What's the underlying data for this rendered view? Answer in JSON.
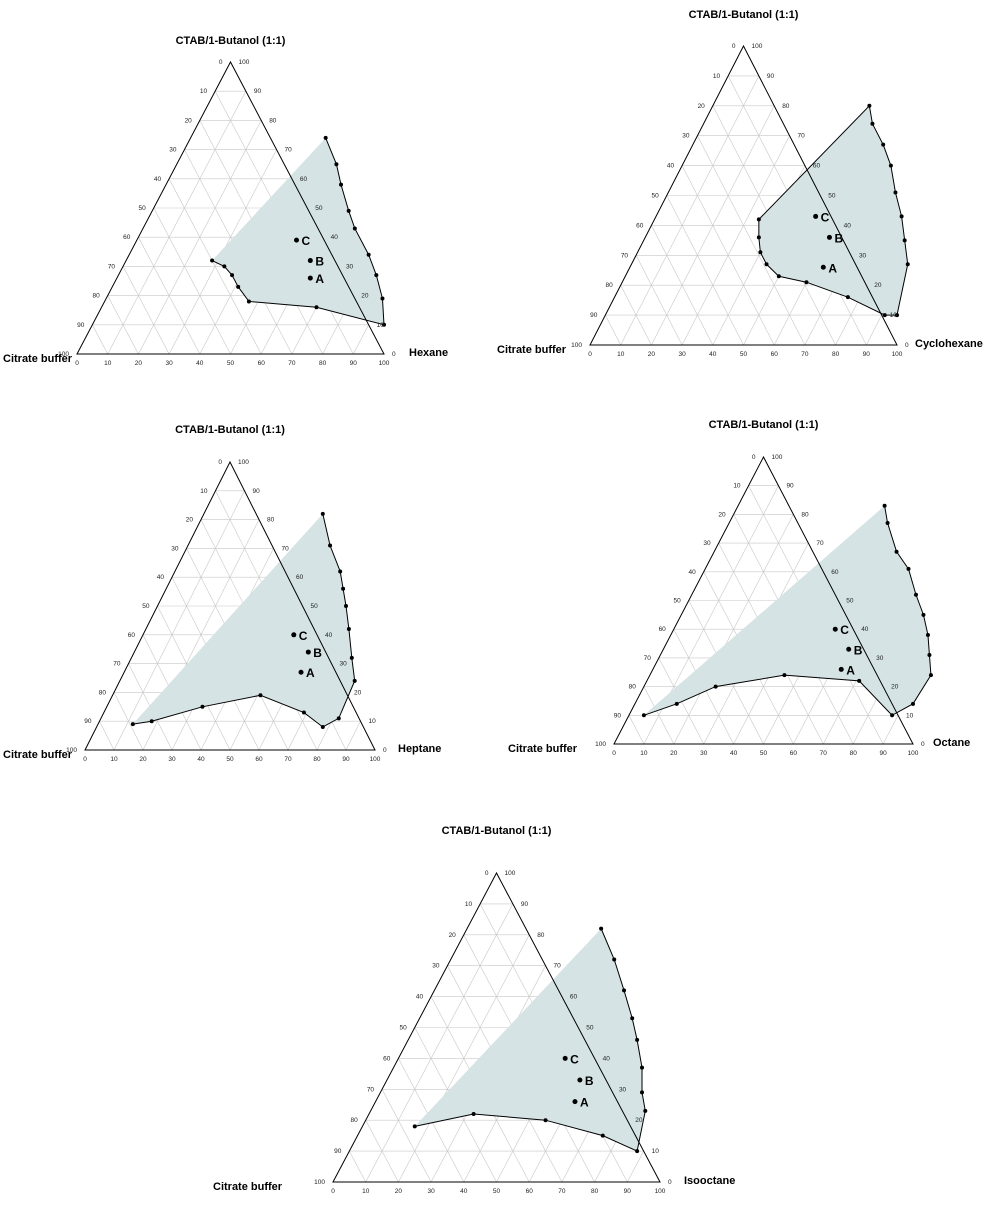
{
  "chart_data": [
    {
      "type": "scatter",
      "title": "CTAB/1-Butanol (1:1)",
      "vertices": {
        "top": "CTAB/1-Butanol (1:1)",
        "left": "Citrate buffer",
        "right": "Hexane"
      },
      "axis_ticks": [
        0,
        10,
        20,
        30,
        40,
        50,
        60,
        70,
        80,
        90,
        100
      ],
      "boundary": [
        {
          "oil": 44,
          "surf": 74
        },
        {
          "oil": 52,
          "surf": 65
        },
        {
          "oil": 57,
          "surf": 58
        },
        {
          "oil": 64,
          "surf": 49
        },
        {
          "oil": 69,
          "surf": 43
        },
        {
          "oil": 78,
          "surf": 34
        },
        {
          "oil": 84,
          "surf": 27
        },
        {
          "oil": 90,
          "surf": 19
        },
        {
          "oil": 95,
          "surf": 10
        },
        {
          "oil": 70,
          "surf": 16
        },
        {
          "oil": 47,
          "surf": 18
        },
        {
          "oil": 41,
          "surf": 23
        },
        {
          "oil": 37,
          "surf": 27
        },
        {
          "oil": 33,
          "surf": 30
        },
        {
          "oil": 28,
          "surf": 32
        }
      ],
      "boundary_closed": false,
      "points": [
        {
          "label": "A",
          "oil": 63,
          "surf": 26
        },
        {
          "label": "B",
          "oil": 60,
          "surf": 32
        },
        {
          "label": "C",
          "oil": 52,
          "surf": 39
        }
      ]
    },
    {
      "type": "scatter",
      "title": "CTAB/1-Butanol (1:1)",
      "vertices": {
        "top": "CTAB/1-Butanol (1:1)",
        "left": "Citrate buffer",
        "right": "Cyclohexane"
      },
      "axis_ticks": [
        0,
        10,
        20,
        30,
        40,
        50,
        60,
        70,
        80,
        90,
        100
      ],
      "boundary": [
        {
          "oil": 51,
          "surf": 80
        },
        {
          "oil": 55,
          "surf": 74
        },
        {
          "oil": 62,
          "surf": 67
        },
        {
          "oil": 68,
          "surf": 60
        },
        {
          "oil": 74,
          "surf": 51
        },
        {
          "oil": 80,
          "surf": 43
        },
        {
          "oil": 85,
          "surf": 35
        },
        {
          "oil": 90,
          "surf": 27
        },
        {
          "oil": 95,
          "surf": 10
        },
        {
          "oil": 91,
          "surf": 10
        },
        {
          "oil": 76,
          "surf": 16
        },
        {
          "oil": 60,
          "surf": 21
        },
        {
          "oil": 50,
          "surf": 23
        },
        {
          "oil": 44,
          "surf": 27
        },
        {
          "oil": 40,
          "surf": 31
        },
        {
          "oil": 37,
          "surf": 36
        },
        {
          "oil": 34,
          "surf": 42
        }
      ],
      "boundary_closed": true,
      "points": [
        {
          "label": "A",
          "oil": 63,
          "surf": 26
        },
        {
          "label": "B",
          "oil": 60,
          "surf": 36
        },
        {
          "label": "C",
          "oil": 52,
          "surf": 43
        }
      ]
    },
    {
      "type": "scatter",
      "title": "CTAB/1-Butanol (1:1)",
      "vertices": {
        "top": "CTAB/1-Butanol (1:1)",
        "left": "Citrate buffer",
        "right": "Heptane"
      },
      "axis_ticks": [
        0,
        10,
        20,
        30,
        40,
        50,
        60,
        70,
        80,
        90,
        100
      ],
      "boundary": [
        {
          "oil": 41,
          "surf": 82
        },
        {
          "oil": 49,
          "surf": 71
        },
        {
          "oil": 57,
          "surf": 62
        },
        {
          "oil": 61,
          "surf": 56
        },
        {
          "oil": 65,
          "surf": 50
        },
        {
          "oil": 70,
          "surf": 42
        },
        {
          "oil": 76,
          "surf": 32
        },
        {
          "oil": 81,
          "surf": 24
        },
        {
          "oil": 82,
          "surf": 11
        },
        {
          "oil": 78,
          "surf": 8
        },
        {
          "oil": 69,
          "surf": 13
        },
        {
          "oil": 51,
          "surf": 19
        },
        {
          "oil": 33,
          "surf": 15
        },
        {
          "oil": 18,
          "surf": 10
        },
        {
          "oil": 12,
          "surf": 9
        }
      ],
      "boundary_closed": false,
      "points": [
        {
          "label": "A",
          "oil": 61,
          "surf": 27
        },
        {
          "label": "B",
          "oil": 60,
          "surf": 34
        },
        {
          "label": "C",
          "oil": 52,
          "surf": 40
        }
      ]
    },
    {
      "type": "scatter",
      "title": "CTAB/1-Butanol (1:1)",
      "vertices": {
        "top": "CTAB/1-Butanol (1:1)",
        "left": "Citrate buffer",
        "right": "Octane"
      },
      "axis_ticks": [
        0,
        10,
        20,
        30,
        40,
        50,
        60,
        70,
        80,
        90,
        100
      ],
      "boundary": [
        {
          "oil": 49,
          "surf": 83
        },
        {
          "oil": 53,
          "surf": 77
        },
        {
          "oil": 61,
          "surf": 67
        },
        {
          "oil": 68,
          "surf": 61
        },
        {
          "oil": 75,
          "surf": 52
        },
        {
          "oil": 81,
          "surf": 45
        },
        {
          "oil": 86,
          "surf": 38
        },
        {
          "oil": 90,
          "surf": 31
        },
        {
          "oil": 94,
          "surf": 24
        },
        {
          "oil": 93,
          "surf": 14
        },
        {
          "oil": 88,
          "surf": 10
        },
        {
          "oil": 71,
          "surf": 22
        },
        {
          "oil": 45,
          "surf": 24
        },
        {
          "oil": 24,
          "surf": 20
        },
        {
          "oil": 14,
          "surf": 14
        },
        {
          "oil": 5,
          "surf": 10
        }
      ],
      "boundary_closed": false,
      "points": [
        {
          "label": "A",
          "oil": 63,
          "surf": 26
        },
        {
          "label": "B",
          "oil": 62,
          "surf": 33
        },
        {
          "label": "C",
          "oil": 54,
          "surf": 40
        }
      ]
    },
    {
      "type": "scatter",
      "title": "CTAB/1-Butanol (1:1)",
      "vertices": {
        "top": "CTAB/1-Butanol (1:1)",
        "left": "Citrate buffer",
        "right": "Isooctane"
      },
      "axis_ticks": [
        0,
        10,
        20,
        30,
        40,
        50,
        60,
        70,
        80,
        90,
        100
      ],
      "boundary": [
        {
          "oil": 41,
          "surf": 82
        },
        {
          "oil": 50,
          "surf": 72
        },
        {
          "oil": 58,
          "surf": 62
        },
        {
          "oil": 65,
          "surf": 53
        },
        {
          "oil": 70,
          "surf": 46
        },
        {
          "oil": 76,
          "surf": 37
        },
        {
          "oil": 80,
          "surf": 29
        },
        {
          "oil": 84,
          "surf": 23
        },
        {
          "oil": 88,
          "surf": 10
        },
        {
          "oil": 75,
          "surf": 15
        },
        {
          "oil": 55,
          "surf": 20
        },
        {
          "oil": 32,
          "surf": 22
        },
        {
          "oil": 16,
          "surf": 18
        }
      ],
      "boundary_closed": false,
      "points": [
        {
          "label": "A",
          "oil": 61,
          "surf": 26
        },
        {
          "label": "B",
          "oil": 59,
          "surf": 33
        },
        {
          "label": "C",
          "oil": 51,
          "surf": 40
        }
      ]
    }
  ]
}
